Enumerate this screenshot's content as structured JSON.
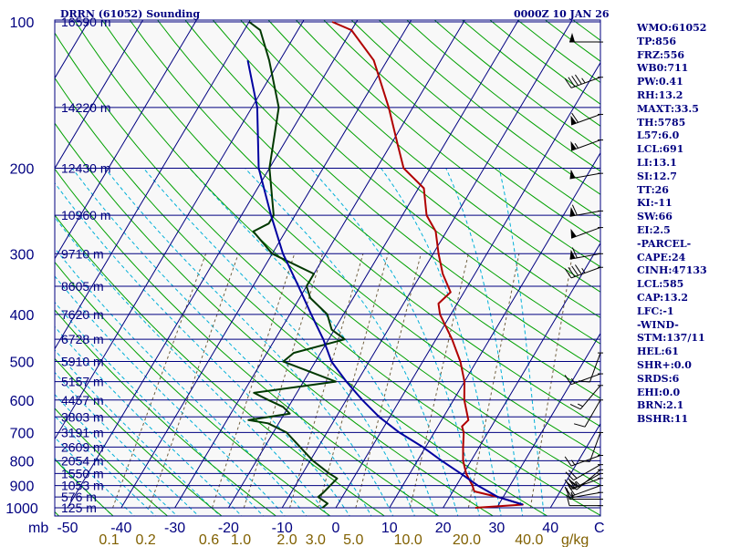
{
  "header": {
    "title": "DRRN (61052) Sounding",
    "datetime": "0000Z 10 JAN 26"
  },
  "indices": [
    "WMO:61052",
    "TP:856",
    "FRZ:556",
    "WB0:711",
    "PW:0.41",
    "RH:13.2",
    "MAXT:33.5",
    "TH:5785",
    "L57:6.0",
    "LCL:691",
    "LI:13.1",
    "SI:12.7",
    "TT:26",
    "KI:-11",
    "SW:66",
    "EI:2.5",
    "-PARCEL-",
    "CAPE:24",
    "CINH:47133",
    "LCL:585",
    "CAP:13.2",
    "LFC:-1",
    "-WIND-",
    "STM:137/11",
    "HEL:61",
    "SHR+:0.0",
    "SRDS:6",
    "EHI:0.0",
    "BRN:2.1",
    "BSHR:11"
  ],
  "colors": {
    "background": "#f8f8f8",
    "isobar": "#000080",
    "isotherm": "#000080",
    "dry_adiabat": "#00a000",
    "moist_adiabat": "#00b0d8",
    "mixing_ratio": "#706040",
    "temperature": "#b00000",
    "dewpoint": "#003800",
    "parcel": "#0000a0",
    "label_axis": "#000080",
    "label_mixing": "#806000"
  },
  "chart_data": {
    "type": "skew-t",
    "ylabel": "mb",
    "xlabel": "C",
    "mixing_label": "g/kg",
    "pressure_ticks": [
      100,
      200,
      300,
      400,
      500,
      600,
      700,
      800,
      900,
      1000
    ],
    "temperature_ticks": [
      -50,
      -40,
      -30,
      -20,
      -10,
      0,
      10,
      20,
      30,
      40
    ],
    "mixing_ratio_ticks": [
      "0.1",
      "0.2",
      "0.6",
      "1.0",
      "2.0",
      "3.0",
      "5.0",
      "10.0",
      "20.0",
      "40.0"
    ],
    "heights": [
      {
        "p": 100,
        "h": "16590 m"
      },
      {
        "p": 150,
        "h": "14220 m"
      },
      {
        "p": 200,
        "h": "12430 m"
      },
      {
        "p": 250,
        "h": "10960 m"
      },
      {
        "p": 300,
        "h": "9710 m"
      },
      {
        "p": 350,
        "h": "8605 m"
      },
      {
        "p": 400,
        "h": "7620 m"
      },
      {
        "p": 450,
        "h": "6728 m"
      },
      {
        "p": 500,
        "h": "5910 m"
      },
      {
        "p": 550,
        "h": "5157 m"
      },
      {
        "p": 600,
        "h": "4457 m"
      },
      {
        "p": 650,
        "h": "3803 m"
      },
      {
        "p": 700,
        "h": "3191 m"
      },
      {
        "p": 750,
        "h": "2609 m"
      },
      {
        "p": 800,
        "h": "2054 m"
      },
      {
        "p": 850,
        "h": "1550 m"
      },
      {
        "p": 900,
        "h": "1053 m"
      },
      {
        "p": 950,
        "h": "576 m"
      },
      {
        "p": 1000,
        "h": "125 m"
      }
    ],
    "series": [
      {
        "key": "temperature",
        "points": [
          [
            1000,
            26.0
          ],
          [
            985,
            34.5
          ],
          [
            950,
            29.0
          ],
          [
            925,
            24.0
          ],
          [
            900,
            23.0
          ],
          [
            850,
            20.5
          ],
          [
            800,
            18.5
          ],
          [
            750,
            17.0
          ],
          [
            700,
            15.5
          ],
          [
            680,
            14.5
          ],
          [
            660,
            15.0
          ],
          [
            600,
            12.0
          ],
          [
            550,
            10.0
          ],
          [
            500,
            7.0
          ],
          [
            450,
            3.0
          ],
          [
            400,
            -2.0
          ],
          [
            380,
            -3.5
          ],
          [
            360,
            -2.5
          ],
          [
            330,
            -6.0
          ],
          [
            300,
            -9.0
          ],
          [
            270,
            -12.0
          ],
          [
            250,
            -15.5
          ],
          [
            220,
            -19.0
          ],
          [
            200,
            -25.0
          ],
          [
            180,
            -28.5
          ],
          [
            150,
            -34.5
          ],
          [
            120,
            -42.5
          ],
          [
            104,
            -50.0
          ],
          [
            100,
            -54.5
          ]
        ]
      },
      {
        "key": "dewpoint",
        "points": [
          [
            1000,
            -2.5
          ],
          [
            980,
            -2.0
          ],
          [
            950,
            -4.5
          ],
          [
            930,
            -4.0
          ],
          [
            900,
            -3.5
          ],
          [
            870,
            -3.0
          ],
          [
            850,
            -5.0
          ],
          [
            800,
            -9.5
          ],
          [
            700,
            -17.5
          ],
          [
            670,
            -22.0
          ],
          [
            660,
            -26.0
          ],
          [
            640,
            -19.0
          ],
          [
            620,
            -21.0
          ],
          [
            600,
            -24.5
          ],
          [
            580,
            -28.0
          ],
          [
            550,
            -14.0
          ],
          [
            500,
            -26.0
          ],
          [
            480,
            -25.0
          ],
          [
            450,
            -17.0
          ],
          [
            430,
            -20.5
          ],
          [
            400,
            -23.0
          ],
          [
            370,
            -28.0
          ],
          [
            350,
            -30.0
          ],
          [
            330,
            -30.0
          ],
          [
            300,
            -40.0
          ],
          [
            270,
            -46.0
          ],
          [
            260,
            -44.0
          ],
          [
            250,
            -44.0
          ],
          [
            200,
            -50.0
          ],
          [
            150,
            -55.0
          ],
          [
            120,
            -62.0
          ],
          [
            104,
            -67.0
          ],
          [
            100,
            -70.0
          ]
        ]
      },
      {
        "key": "parcel",
        "points": [
          [
            985,
            34.5
          ],
          [
            950,
            29.0
          ],
          [
            900,
            24.0
          ],
          [
            850,
            19.5
          ],
          [
            800,
            14.5
          ],
          [
            750,
            9.5
          ],
          [
            700,
            3.5
          ],
          [
            650,
            -2.0
          ],
          [
            600,
            -7.0
          ],
          [
            550,
            -12.0
          ],
          [
            500,
            -17.0
          ],
          [
            450,
            -21.0
          ],
          [
            400,
            -26.0
          ],
          [
            350,
            -31.5
          ],
          [
            300,
            -38.0
          ],
          [
            250,
            -44.5
          ],
          [
            200,
            -52.0
          ],
          [
            150,
            -59.0
          ],
          [
            120,
            -66.0
          ]
        ]
      }
    ],
    "wind_barbs": [
      {
        "p": 110,
        "dir": 270,
        "spd": 50
      },
      {
        "p": 130,
        "dir": 250,
        "spd": 45
      },
      {
        "p": 155,
        "dir": 250,
        "spd": 60
      },
      {
        "p": 175,
        "dir": 250,
        "spd": 55
      },
      {
        "p": 205,
        "dir": 260,
        "spd": 50
      },
      {
        "p": 245,
        "dir": 260,
        "spd": 60
      },
      {
        "p": 265,
        "dir": 250,
        "spd": 50
      },
      {
        "p": 300,
        "dir": 260,
        "spd": 60
      },
      {
        "p": 320,
        "dir": 250,
        "spd": 45
      },
      {
        "p": 480,
        "dir": 200,
        "spd": 10
      },
      {
        "p": 530,
        "dir": 250,
        "spd": 15
      },
      {
        "p": 560,
        "dir": 220,
        "spd": 15
      },
      {
        "p": 600,
        "dir": 210,
        "spd": 10
      },
      {
        "p": 700,
        "dir": 200,
        "spd": 10
      },
      {
        "p": 780,
        "dir": 250,
        "spd": 15
      },
      {
        "p": 815,
        "dir": 240,
        "spd": 20
      },
      {
        "p": 835,
        "dir": 230,
        "spd": 20
      },
      {
        "p": 850,
        "dir": 240,
        "spd": 25
      },
      {
        "p": 870,
        "dir": 250,
        "spd": 25
      },
      {
        "p": 900,
        "dir": 250,
        "spd": 20
      },
      {
        "p": 930,
        "dir": 260,
        "spd": 15
      },
      {
        "p": 960,
        "dir": 270,
        "spd": 15
      },
      {
        "p": 990,
        "dir": 270,
        "spd": 10
      }
    ]
  }
}
